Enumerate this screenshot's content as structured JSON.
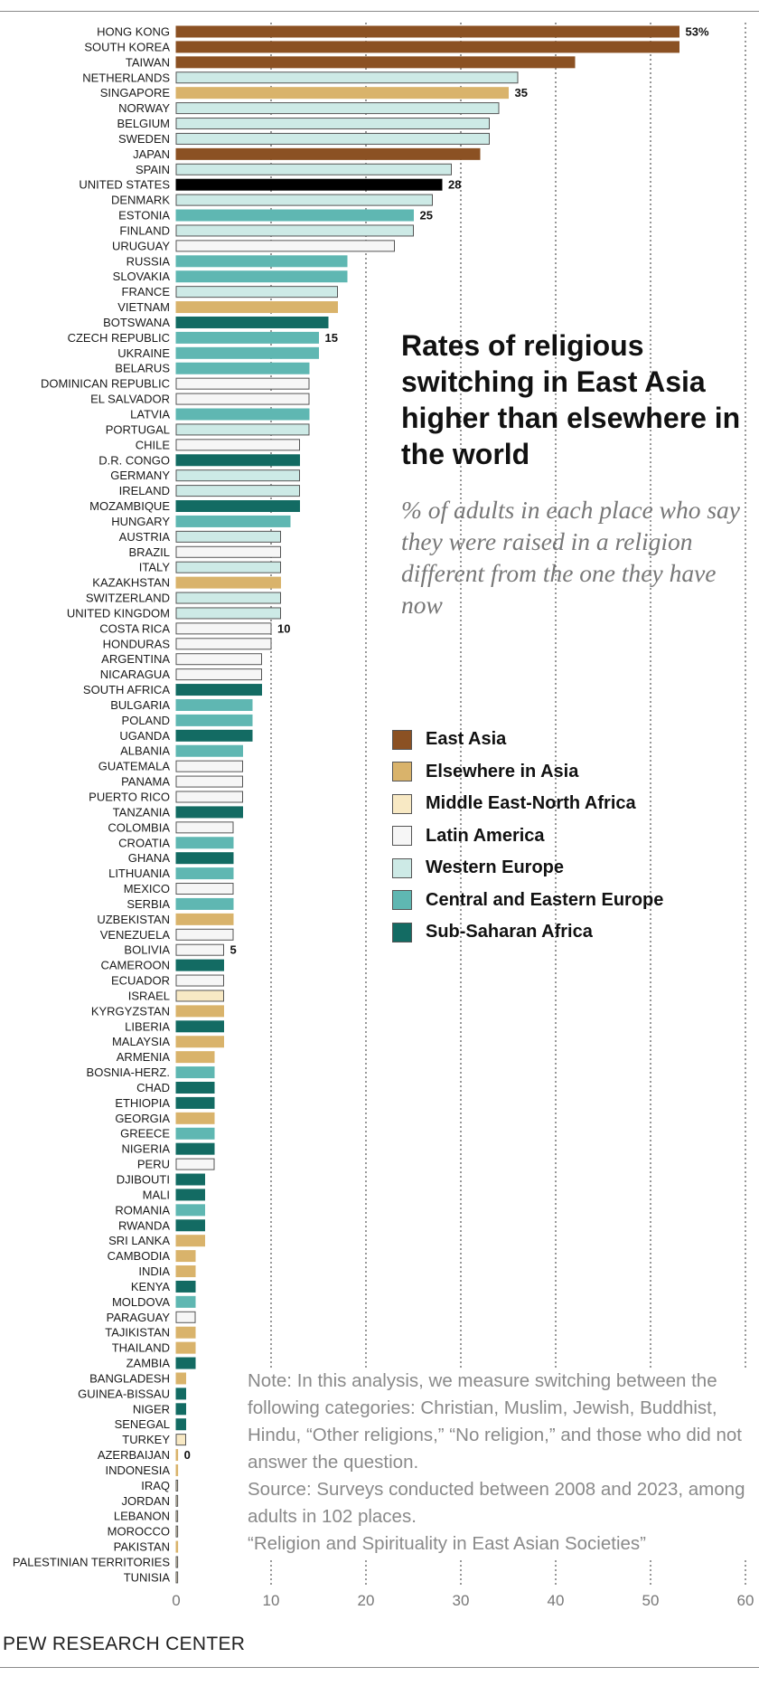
{
  "chart_data": {
    "type": "bar",
    "orientation": "horizontal",
    "title": "Rates of religious switching in East Asia higher than elsewhere in the world",
    "subtitle": "% of adults in each place who say they were raised in a religion different from the one they have now",
    "xlim": [
      0,
      60
    ],
    "x_ticks": [
      0,
      10,
      20,
      30,
      40,
      50,
      60
    ],
    "regions": [
      {
        "name": "East Asia",
        "color": "#8b5123"
      },
      {
        "name": "Elsewhere in Asia",
        "color": "#d9b36b"
      },
      {
        "name": "Middle East-North Africa",
        "color": "#f8e9c4"
      },
      {
        "name": "Latin America",
        "color": "#f6f6f6"
      },
      {
        "name": "Western Europe",
        "color": "#cdeae6"
      },
      {
        "name": "Central and Eastern Europe",
        "color": "#5fb7b2"
      },
      {
        "name": "Sub-Saharan Africa",
        "color": "#136b63"
      },
      {
        "name": "United States",
        "color": "#000000"
      }
    ],
    "bars": [
      {
        "label": "HONG KONG",
        "value": 53,
        "region": 0,
        "data_label": "53%"
      },
      {
        "label": "SOUTH KOREA",
        "value": 53,
        "region": 0
      },
      {
        "label": "TAIWAN",
        "value": 42,
        "region": 0
      },
      {
        "label": "NETHERLANDS",
        "value": 36,
        "region": 4
      },
      {
        "label": "SINGAPORE",
        "value": 35,
        "region": 1,
        "data_label": "35"
      },
      {
        "label": "NORWAY",
        "value": 34,
        "region": 4
      },
      {
        "label": "BELGIUM",
        "value": 33,
        "region": 4
      },
      {
        "label": "SWEDEN",
        "value": 33,
        "region": 4
      },
      {
        "label": "JAPAN",
        "value": 32,
        "region": 0
      },
      {
        "label": "SPAIN",
        "value": 29,
        "region": 4
      },
      {
        "label": "UNITED STATES",
        "value": 28,
        "region": 7,
        "data_label": "28"
      },
      {
        "label": "DENMARK",
        "value": 27,
        "region": 4
      },
      {
        "label": "ESTONIA",
        "value": 25,
        "region": 5,
        "data_label": "25"
      },
      {
        "label": "FINLAND",
        "value": 25,
        "region": 4
      },
      {
        "label": "URUGUAY",
        "value": 23,
        "region": 3
      },
      {
        "label": "RUSSIA",
        "value": 18,
        "region": 5
      },
      {
        "label": "SLOVAKIA",
        "value": 18,
        "region": 5
      },
      {
        "label": "FRANCE",
        "value": 17,
        "region": 4
      },
      {
        "label": "VIETNAM",
        "value": 17,
        "region": 1
      },
      {
        "label": "BOTSWANA",
        "value": 16,
        "region": 6
      },
      {
        "label": "CZECH REPUBLIC",
        "value": 15,
        "region": 5,
        "data_label": "15"
      },
      {
        "label": "UKRAINE",
        "value": 15,
        "region": 5
      },
      {
        "label": "BELARUS",
        "value": 14,
        "region": 5
      },
      {
        "label": "DOMINICAN REPUBLIC",
        "value": 14,
        "region": 3
      },
      {
        "label": "EL SALVADOR",
        "value": 14,
        "region": 3
      },
      {
        "label": "LATVIA",
        "value": 14,
        "region": 5
      },
      {
        "label": "PORTUGAL",
        "value": 14,
        "region": 4
      },
      {
        "label": "CHILE",
        "value": 13,
        "region": 3
      },
      {
        "label": "D.R. CONGO",
        "value": 13,
        "region": 6
      },
      {
        "label": "GERMANY",
        "value": 13,
        "region": 4
      },
      {
        "label": "IRELAND",
        "value": 13,
        "region": 4
      },
      {
        "label": "MOZAMBIQUE",
        "value": 13,
        "region": 6
      },
      {
        "label": "HUNGARY",
        "value": 12,
        "region": 5
      },
      {
        "label": "AUSTRIA",
        "value": 11,
        "region": 4
      },
      {
        "label": "BRAZIL",
        "value": 11,
        "region": 3
      },
      {
        "label": "ITALY",
        "value": 11,
        "region": 4
      },
      {
        "label": "KAZAKHSTAN",
        "value": 11,
        "region": 1
      },
      {
        "label": "SWITZERLAND",
        "value": 11,
        "region": 4
      },
      {
        "label": "UNITED KINGDOM",
        "value": 11,
        "region": 4
      },
      {
        "label": "COSTA RICA",
        "value": 10,
        "region": 3,
        "data_label": "10"
      },
      {
        "label": "HONDURAS",
        "value": 10,
        "region": 3
      },
      {
        "label": "ARGENTINA",
        "value": 9,
        "region": 3
      },
      {
        "label": "NICARAGUA",
        "value": 9,
        "region": 3
      },
      {
        "label": "SOUTH AFRICA",
        "value": 9,
        "region": 6
      },
      {
        "label": "BULGARIA",
        "value": 8,
        "region": 5
      },
      {
        "label": "POLAND",
        "value": 8,
        "region": 5
      },
      {
        "label": "UGANDA",
        "value": 8,
        "region": 6
      },
      {
        "label": "ALBANIA",
        "value": 7,
        "region": 5
      },
      {
        "label": "GUATEMALA",
        "value": 7,
        "region": 3
      },
      {
        "label": "PANAMA",
        "value": 7,
        "region": 3
      },
      {
        "label": "PUERTO RICO",
        "value": 7,
        "region": 3
      },
      {
        "label": "TANZANIA",
        "value": 7,
        "region": 6
      },
      {
        "label": "COLOMBIA",
        "value": 6,
        "region": 3
      },
      {
        "label": "CROATIA",
        "value": 6,
        "region": 5
      },
      {
        "label": "GHANA",
        "value": 6,
        "region": 6
      },
      {
        "label": "LITHUANIA",
        "value": 6,
        "region": 5
      },
      {
        "label": "MEXICO",
        "value": 6,
        "region": 3
      },
      {
        "label": "SERBIA",
        "value": 6,
        "region": 5
      },
      {
        "label": "UZBEKISTAN",
        "value": 6,
        "region": 1
      },
      {
        "label": "VENEZUELA",
        "value": 6,
        "region": 3
      },
      {
        "label": "BOLIVIA",
        "value": 5,
        "region": 3,
        "data_label": "5"
      },
      {
        "label": "CAMEROON",
        "value": 5,
        "region": 6
      },
      {
        "label": "ECUADOR",
        "value": 5,
        "region": 3
      },
      {
        "label": "ISRAEL",
        "value": 5,
        "region": 2
      },
      {
        "label": "KYRGYZSTAN",
        "value": 5,
        "region": 1
      },
      {
        "label": "LIBERIA",
        "value": 5,
        "region": 6
      },
      {
        "label": "MALAYSIA",
        "value": 5,
        "region": 1
      },
      {
        "label": "ARMENIA",
        "value": 4,
        "region": 1
      },
      {
        "label": "BOSNIA-HERZ.",
        "value": 4,
        "region": 5
      },
      {
        "label": "CHAD",
        "value": 4,
        "region": 6
      },
      {
        "label": "ETHIOPIA",
        "value": 4,
        "region": 6
      },
      {
        "label": "GEORGIA",
        "value": 4,
        "region": 1
      },
      {
        "label": "GREECE",
        "value": 4,
        "region": 5
      },
      {
        "label": "NIGERIA",
        "value": 4,
        "region": 6
      },
      {
        "label": "PERU",
        "value": 4,
        "region": 3
      },
      {
        "label": "DJIBOUTI",
        "value": 3,
        "region": 6
      },
      {
        "label": "MALI",
        "value": 3,
        "region": 6
      },
      {
        "label": "ROMANIA",
        "value": 3,
        "region": 5
      },
      {
        "label": "RWANDA",
        "value": 3,
        "region": 6
      },
      {
        "label": "SRI LANKA",
        "value": 3,
        "region": 1
      },
      {
        "label": "CAMBODIA",
        "value": 2,
        "region": 1
      },
      {
        "label": "INDIA",
        "value": 2,
        "region": 1
      },
      {
        "label": "KENYA",
        "value": 2,
        "region": 6
      },
      {
        "label": "MOLDOVA",
        "value": 2,
        "region": 5
      },
      {
        "label": "PARAGUAY",
        "value": 2,
        "region": 3
      },
      {
        "label": "TAJIKISTAN",
        "value": 2,
        "region": 1
      },
      {
        "label": "THAILAND",
        "value": 2,
        "region": 1
      },
      {
        "label": "ZAMBIA",
        "value": 2,
        "region": 6
      },
      {
        "label": "BANGLADESH",
        "value": 1,
        "region": 1
      },
      {
        "label": "GUINEA-BISSAU",
        "value": 1,
        "region": 6
      },
      {
        "label": "NIGER",
        "value": 1,
        "region": 6
      },
      {
        "label": "SENEGAL",
        "value": 1,
        "region": 6
      },
      {
        "label": "TURKEY",
        "value": 1,
        "region": 2
      },
      {
        "label": "AZERBAIJAN",
        "value": 0,
        "region": 1,
        "data_label": "0"
      },
      {
        "label": "INDONESIA",
        "value": 0,
        "region": 1
      },
      {
        "label": "IRAQ",
        "value": 0,
        "region": 2
      },
      {
        "label": "JORDAN",
        "value": 0,
        "region": 2
      },
      {
        "label": "LEBANON",
        "value": 0,
        "region": 2
      },
      {
        "label": "MOROCCO",
        "value": 0,
        "region": 2
      },
      {
        "label": "PAKISTAN",
        "value": 0,
        "region": 1
      },
      {
        "label": "PALESTINIAN TERRITORIES",
        "value": 0,
        "region": 2
      },
      {
        "label": "TUNISIA",
        "value": 0,
        "region": 2
      }
    ]
  },
  "header": {
    "title": "Rates of religious switching in East Asia higher than elsewhere in the world",
    "subtitle": "% of adults in each place who say they were raised in a religion different from the one they have now"
  },
  "legend": [
    {
      "label": "East Asia",
      "color": "#8b5123"
    },
    {
      "label": "Elsewhere in Asia",
      "color": "#d9b36b"
    },
    {
      "label": "Middle East-North Africa",
      "color": "#f8e9c4"
    },
    {
      "label": "Latin America",
      "color": "#f6f6f6"
    },
    {
      "label": "Western Europe",
      "color": "#cdeae6"
    },
    {
      "label": "Central and Eastern Europe",
      "color": "#5fb7b2"
    },
    {
      "label": "Sub-Saharan Africa",
      "color": "#136b63"
    }
  ],
  "notes": {
    "note": "Note: In this analysis, we measure switching between the following categories: Christian, Muslim, Jewish, Buddhist, Hindu, “Other religions,” “No religion,” and those who did not answer the question.",
    "source": "Source: Surveys conducted between 2008 and 2023, among adults in 102 places.",
    "report": "“Religion and Spirituality in East Asian Societies”"
  },
  "footer": {
    "org": "PEW RESEARCH CENTER"
  }
}
